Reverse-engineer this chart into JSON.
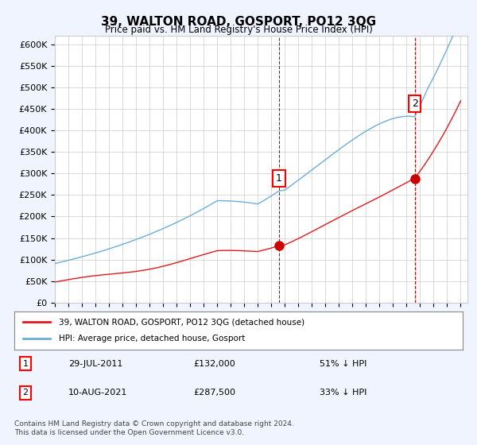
{
  "title": "39, WALTON ROAD, GOSPORT, PO12 3QG",
  "subtitle": "Price paid vs. HM Land Registry's House Price Index (HPI)",
  "ylabel_ticks": [
    "£0",
    "£50K",
    "£100K",
    "£150K",
    "£200K",
    "£250K",
    "£300K",
    "£350K",
    "£400K",
    "£450K",
    "£500K",
    "£550K",
    "£600K"
  ],
  "ytick_values": [
    0,
    50000,
    100000,
    150000,
    200000,
    250000,
    300000,
    350000,
    400000,
    450000,
    500000,
    550000,
    600000
  ],
  "ylim": [
    0,
    620000
  ],
  "xlim_start": 1995.0,
  "xlim_end": 2025.5,
  "hpi_color": "#6baed6",
  "price_color": "#e31a1c",
  "dot_color": "#cc0000",
  "transaction1_x": 2011.57,
  "transaction1_y": 132000,
  "transaction1_label": "1",
  "transaction2_x": 2021.61,
  "transaction2_y": 287500,
  "transaction2_label": "2",
  "vline1_x": 2011.57,
  "vline2_x": 2021.61,
  "legend_line1": "39, WALTON ROAD, GOSPORT, PO12 3QG (detached house)",
  "legend_line2": "HPI: Average price, detached house, Gosport",
  "table_row1_num": "1",
  "table_row1_date": "29-JUL-2011",
  "table_row1_price": "£132,000",
  "table_row1_hpi": "51% ↓ HPI",
  "table_row2_num": "2",
  "table_row2_date": "10-AUG-2021",
  "table_row2_price": "£287,500",
  "table_row2_hpi": "33% ↓ HPI",
  "footer": "Contains HM Land Registry data © Crown copyright and database right 2024.\nThis data is licensed under the Open Government Licence v3.0.",
  "bg_color": "#f0f4ff",
  "plot_bg_color": "#ffffff"
}
